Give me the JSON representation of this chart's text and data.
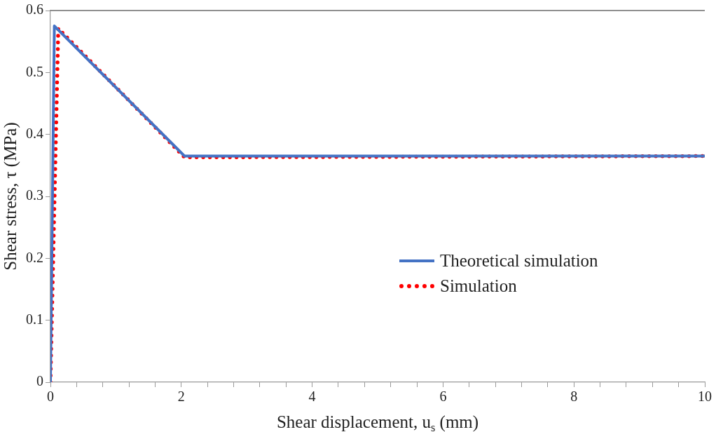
{
  "chart_data": {
    "type": "line",
    "xlabel": "Shear displacement, u$_{s}$ (mm)",
    "ylabel": "Shear stress, τ (MPa)",
    "xlim": [
      0,
      10
    ],
    "xticks": [
      0,
      {
        "value": 0.4,
        "label": null
      },
      {
        "value": 0.8,
        "label": null
      },
      {
        "value": 1.2,
        "label": null
      },
      {
        "value": 1.6,
        "label": null
      },
      2,
      {
        "value": 2.4,
        "label": null
      },
      {
        "value": 2.8,
        "label": null
      },
      {
        "value": 3.2,
        "label": null
      },
      {
        "value": 3.6,
        "label": null
      },
      4,
      {
        "value": 4.4,
        "label": null
      },
      {
        "value": 4.8,
        "label": null
      },
      {
        "value": 5.2,
        "label": null
      },
      {
        "value": 5.6,
        "label": null
      },
      6,
      {
        "value": 6.4,
        "label": null
      },
      {
        "value": 6.8,
        "label": null
      },
      {
        "value": 7.2,
        "label": null
      },
      {
        "value": 7.6,
        "label": null
      },
      8,
      {
        "value": 8.4,
        "label": null
      },
      {
        "value": 8.8,
        "label": null
      },
      {
        "value": 9.2,
        "label": null
      },
      {
        "value": 9.6,
        "label": null
      },
      10
    ],
    "ylim": [
      0,
      0.6
    ],
    "yticks": [
      0,
      0.1,
      0.2,
      0.3,
      0.4,
      0.5,
      0.6
    ],
    "grid": false,
    "legend": "right",
    "marker": "none",
    "series": [
      {
        "name": "Theoretical simulation",
        "color": "#4472c4",
        "line_style": "solid",
        "x": [
          0,
          0.06,
          2.05,
          10
        ],
        "values": [
          0,
          0.575,
          0.365,
          0.365
        ]
      },
      {
        "name": "Simulation",
        "color": "#ff0000",
        "line_style": "dotted",
        "x": [
          0,
          0.12,
          2.05,
          10
        ],
        "values": [
          0,
          0.571,
          0.363,
          0.365
        ]
      }
    ]
  }
}
